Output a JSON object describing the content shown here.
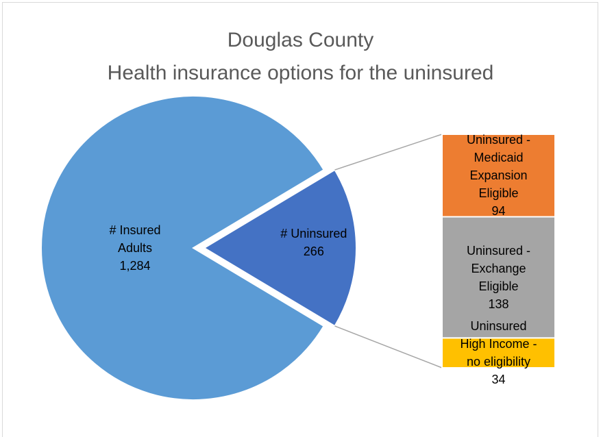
{
  "chart_data": {
    "type": "bar_of_pie",
    "title": "Douglas County",
    "subtitle": "Health insurance options for the uninsured",
    "categories": [
      "# Insured Adults",
      "# Uninsured"
    ],
    "values": [
      1284,
      266
    ],
    "value_labels": [
      "1,284",
      "266"
    ],
    "colors": [
      "#5b9bd5",
      "#4472c4"
    ],
    "breakdown": {
      "categories": [
        "Uninsured - Medicaid Expansion Eligible",
        "Uninsured - Exchange Eligible",
        "Uninsured High Income - no eligibility"
      ],
      "values": [
        94,
        138,
        34
      ],
      "colors": [
        "#ed7d31",
        "#a5a5a5",
        "#ffc000"
      ]
    }
  }
}
